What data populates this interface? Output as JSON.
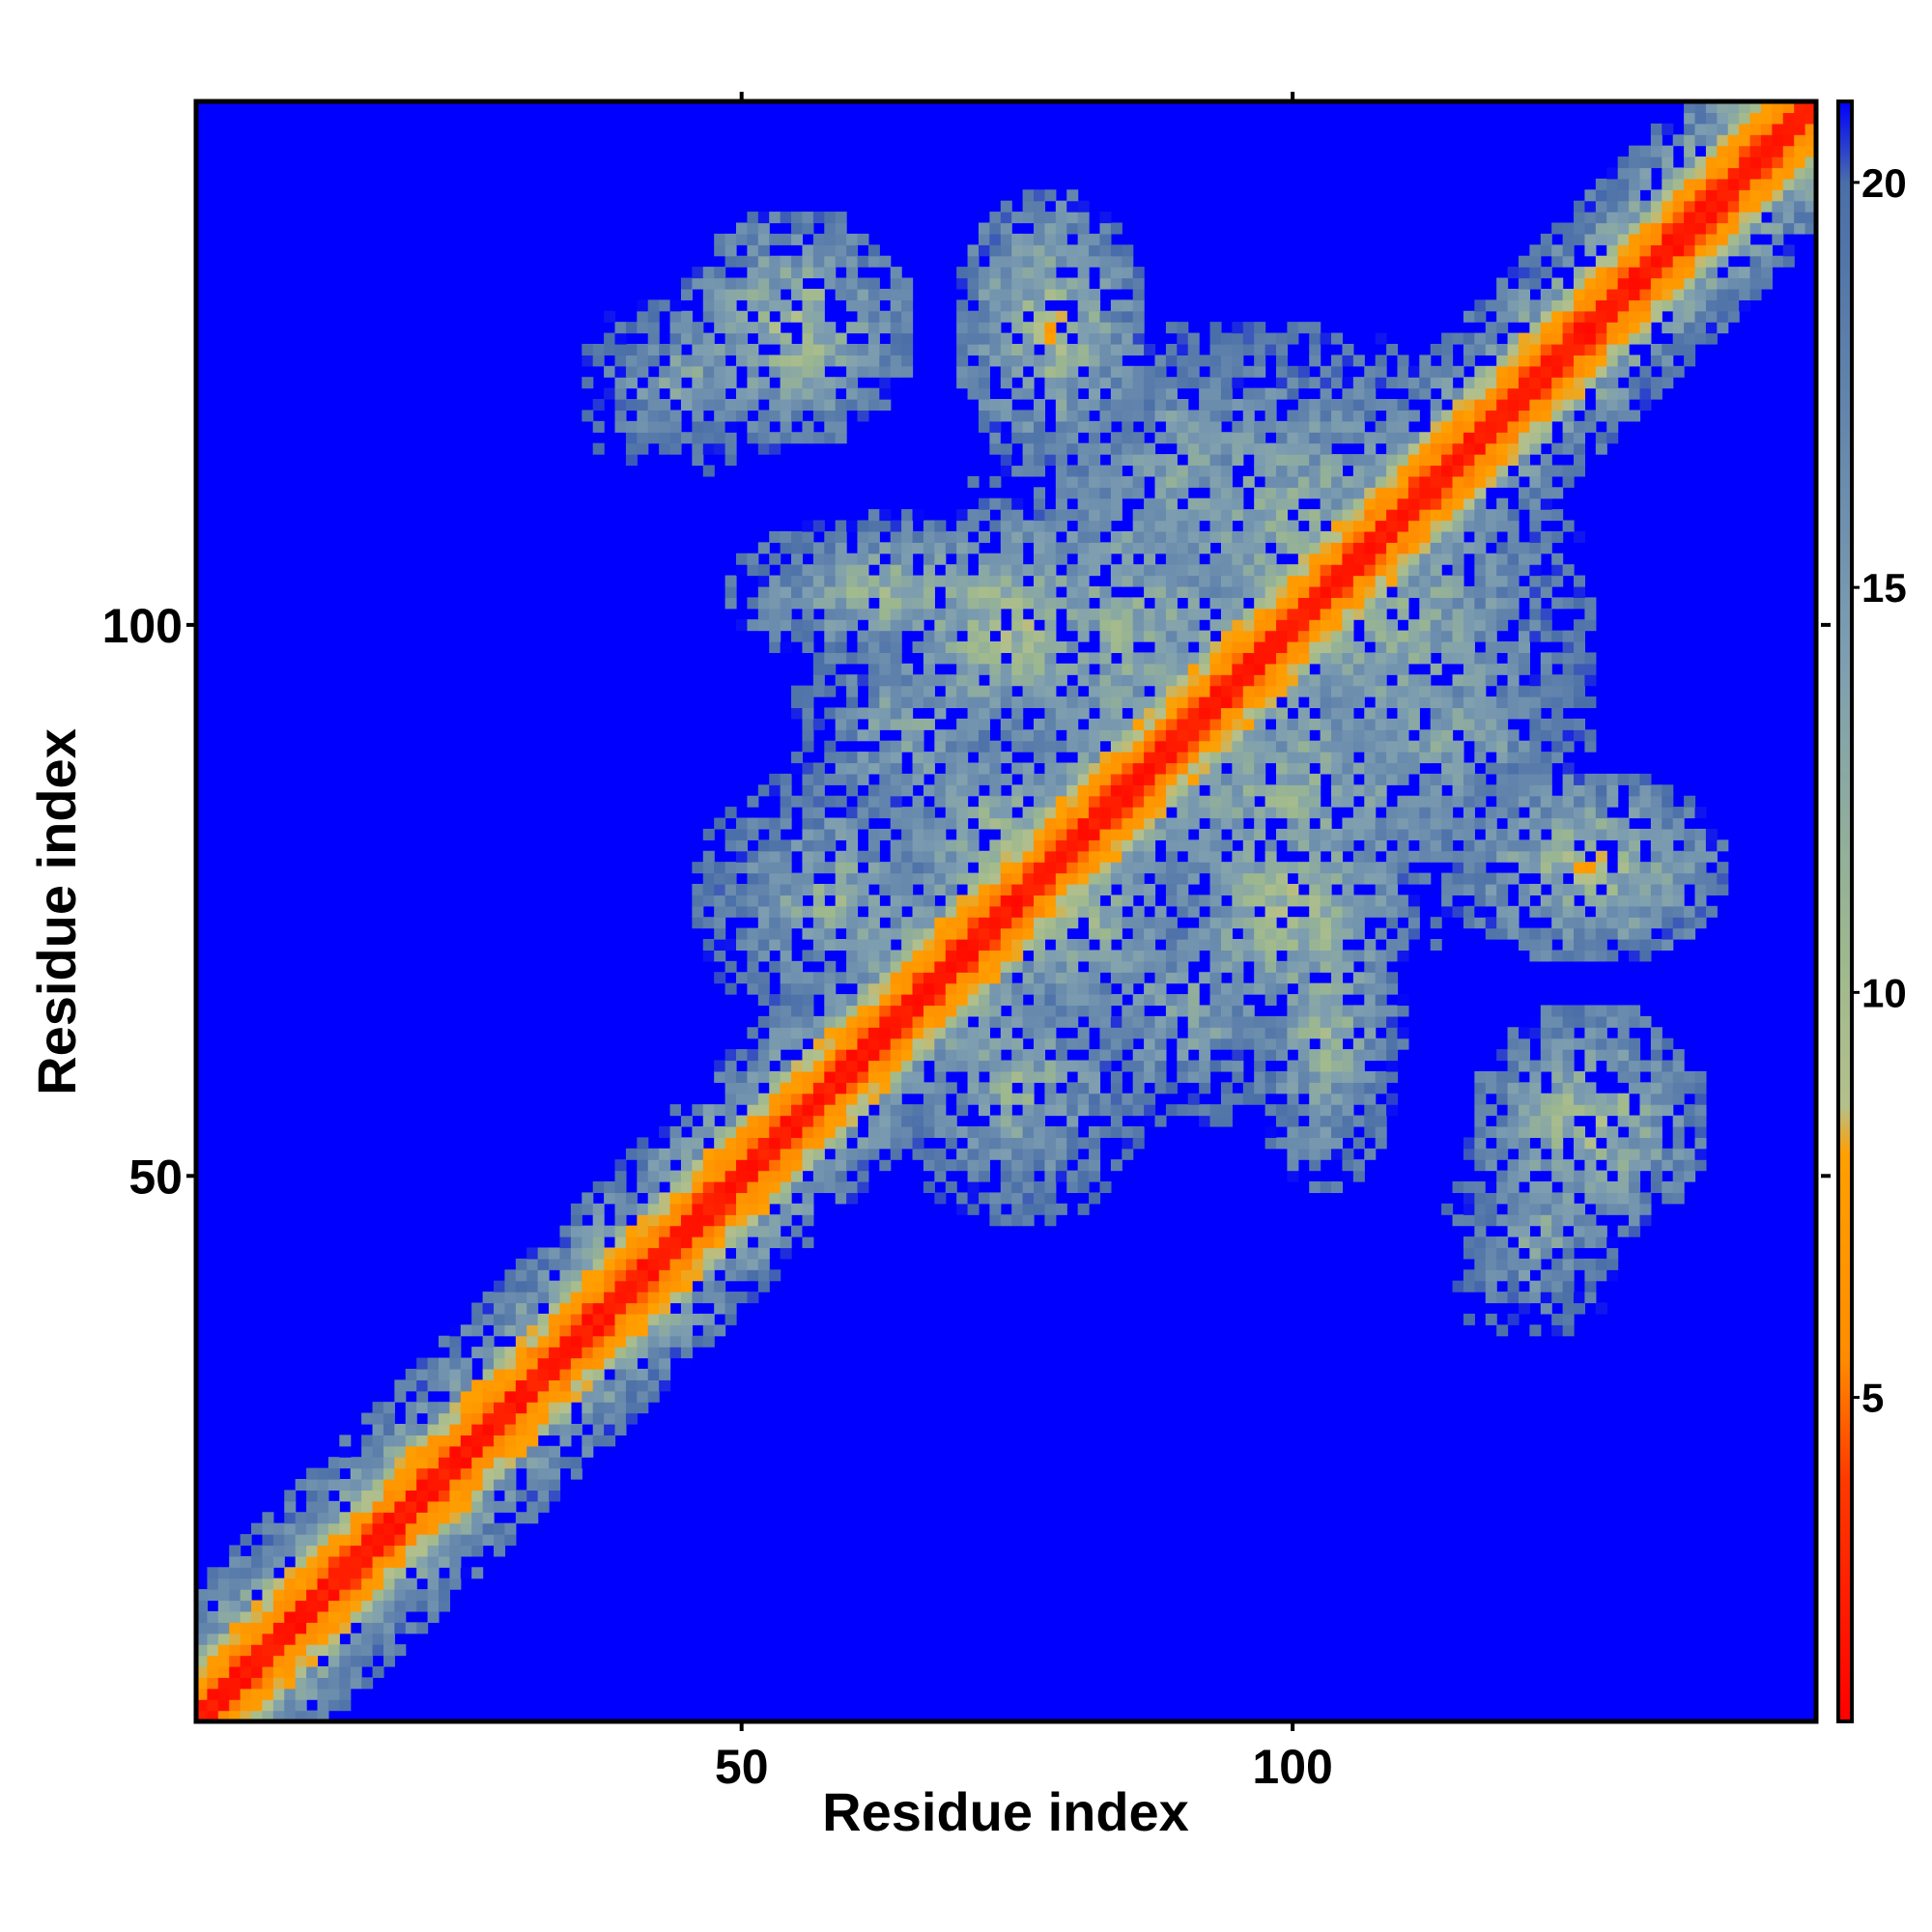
{
  "chart_data": {
    "type": "heatmap",
    "title": "",
    "xlabel": "Residue index",
    "ylabel": "Residue index",
    "xlim": [
      1,
      147
    ],
    "ylim": [
      1,
      147
    ],
    "n_residues": 147,
    "x_ticks": [
      50,
      100
    ],
    "y_ticks": [
      50,
      100
    ],
    "colorbar": {
      "range": [
        1,
        21
      ],
      "ticks": [
        5,
        10,
        15,
        20
      ],
      "stops": [
        {
          "value": 1.0,
          "color": "#ff0000"
        },
        {
          "value": 4.0,
          "color": "#ff3a00"
        },
        {
          "value": 5.5,
          "color": "#ff8c00"
        },
        {
          "value": 8.0,
          "color": "#ff9f00"
        },
        {
          "value": 8.6,
          "color": "#b4c08c"
        },
        {
          "value": 10.5,
          "color": "#9db88e"
        },
        {
          "value": 14.0,
          "color": "#7f9fb0"
        },
        {
          "value": 20.0,
          "color": "#4a6ea8"
        },
        {
          "value": 21.0,
          "color": "#0000ff"
        }
      ],
      "saturated_color": "#0000ff"
    },
    "diagonal_band": {
      "contact_width_residues": 1.5,
      "near_width_residues": 5.0
    },
    "contact_clusters": [
      {
        "x": 40,
        "y": 50,
        "sx": 4,
        "sy": 4,
        "value": 11.0
      },
      {
        "x": 55,
        "y": 128,
        "sx": 6,
        "sy": 4,
        "value": 9.5
      },
      {
        "x": 70,
        "y": 127,
        "sx": 7,
        "sy": 5,
        "value": 11.0
      },
      {
        "x": 78,
        "y": 125,
        "sx": 5,
        "sy": 4,
        "value": 8.0
      },
      {
        "x": 100,
        "y": 122,
        "sx": 8,
        "sy": 6,
        "value": 13.5
      },
      {
        "x": 70,
        "y": 100,
        "sx": 9,
        "sy": 5,
        "value": 11.5
      },
      {
        "x": 90,
        "y": 105,
        "sx": 10,
        "sy": 7,
        "value": 12.0
      },
      {
        "x": 80,
        "y": 95,
        "sx": 9,
        "sy": 8,
        "value": 11.0
      },
      {
        "x": 110,
        "y": 100,
        "sx": 10,
        "sy": 10,
        "value": 12.0
      },
      {
        "x": 100,
        "y": 85,
        "sx": 12,
        "sy": 10,
        "value": 12.0
      },
      {
        "x": 75,
        "y": 77,
        "sx": 5,
        "sy": 5,
        "value": 9.0
      },
      {
        "x": 68,
        "y": 82,
        "sx": 7,
        "sy": 7,
        "value": 11.0
      },
      {
        "x": 80,
        "y": 74,
        "sx": 6,
        "sy": 6,
        "value": 10.5
      },
      {
        "x": 60,
        "y": 82,
        "sx": 8,
        "sy": 6,
        "value": 12.5
      },
      {
        "x": 50,
        "y": 86,
        "sx": 7,
        "sy": 4,
        "value": 14.0
      },
      {
        "x": 100,
        "y": 74,
        "sx": 6,
        "sy": 6,
        "value": 9.5
      },
      {
        "x": 103,
        "y": 63,
        "sx": 4,
        "sy": 8,
        "value": 11.0
      },
      {
        "x": 75,
        "y": 58,
        "sx": 7,
        "sy": 7,
        "value": 12.0
      },
      {
        "x": 90,
        "y": 65,
        "sx": 6,
        "sy": 6,
        "value": 12.5
      },
      {
        "x": 127,
        "y": 78,
        "sx": 7,
        "sy": 5,
        "value": 10.0
      },
      {
        "x": 127,
        "y": 55,
        "sx": 6,
        "sy": 6,
        "value": 10.0
      },
      {
        "x": 122,
        "y": 45,
        "sx": 5,
        "sy": 6,
        "value": 13.0
      },
      {
        "x": 115,
        "y": 90,
        "sx": 7,
        "sy": 6,
        "value": 12.5
      }
    ]
  }
}
